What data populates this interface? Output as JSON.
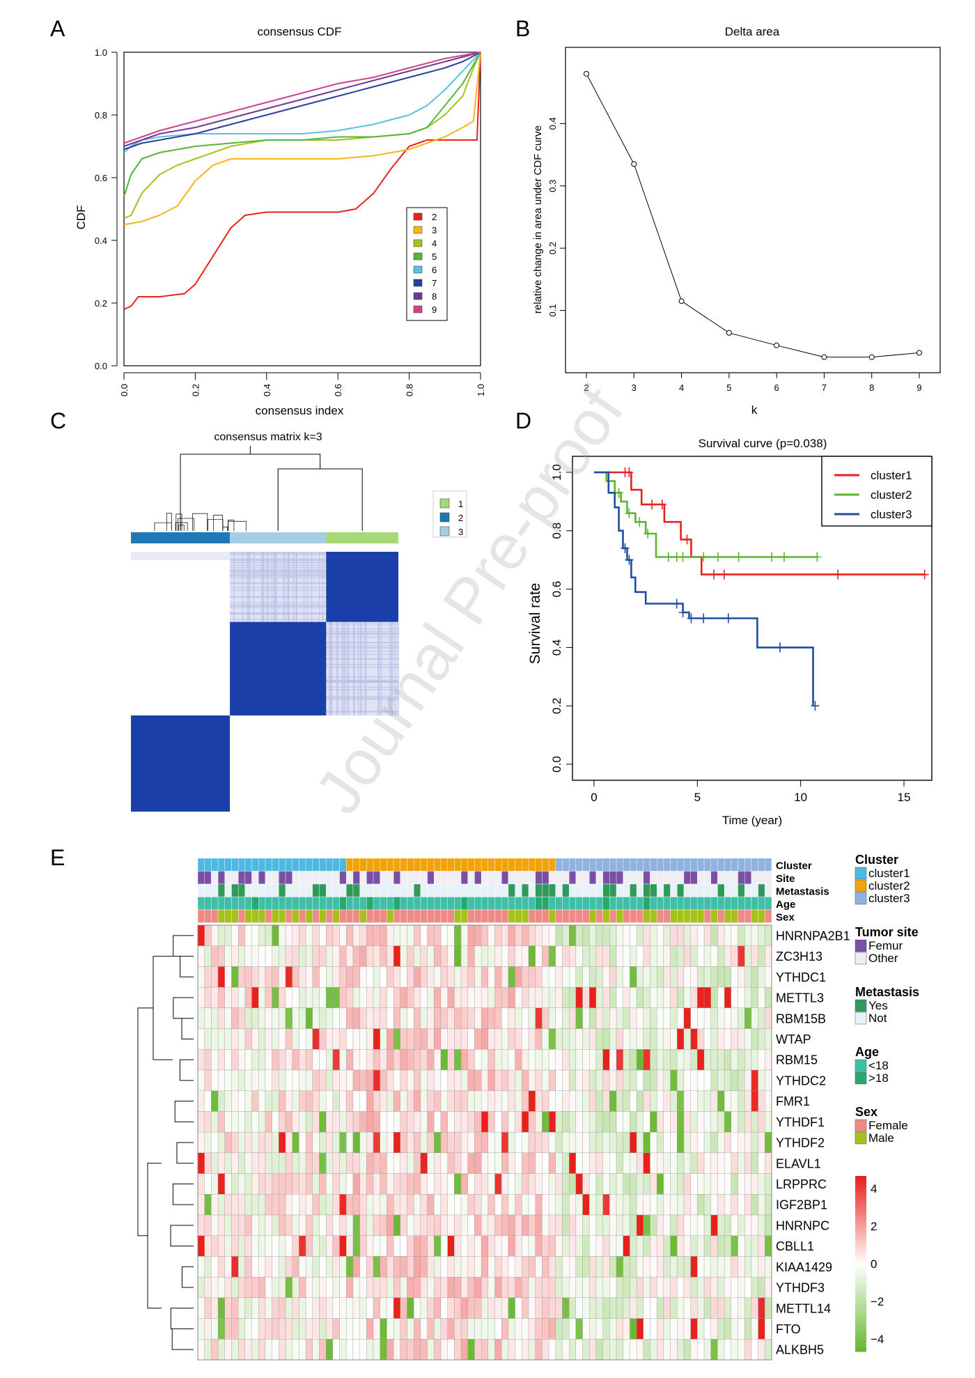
{
  "panel_labels": [
    "A",
    "B",
    "C",
    "D",
    "E"
  ],
  "watermark": "Journal Pre-proof",
  "chart_data": [
    {
      "panel": "A",
      "type": "line",
      "title": "consensus CDF",
      "xlabel": "consensus index",
      "ylabel": "CDF",
      "xlim": [
        0,
        1
      ],
      "ylim": [
        0,
        1
      ],
      "xticks": [
        "0.0",
        "0.2",
        "0.4",
        "0.6",
        "0.8",
        "1.0"
      ],
      "yticks": [
        "0.0",
        "0.2",
        "0.4",
        "0.6",
        "0.8",
        "1.0"
      ],
      "legend_position": "right",
      "series": [
        {
          "name": "2",
          "color": "#e8211d",
          "x": [
            0,
            0.02,
            0.04,
            0.1,
            0.17,
            0.2,
            0.25,
            0.3,
            0.34,
            0.4,
            0.5,
            0.6,
            0.65,
            0.7,
            0.75,
            0.8,
            0.85,
            0.9,
            0.95,
            0.98,
            0.99,
            1.0
          ],
          "y": [
            0.18,
            0.19,
            0.22,
            0.22,
            0.23,
            0.26,
            0.35,
            0.44,
            0.48,
            0.49,
            0.49,
            0.49,
            0.5,
            0.55,
            0.63,
            0.7,
            0.72,
            0.72,
            0.72,
            0.72,
            0.72,
            1.0
          ]
        },
        {
          "name": "3",
          "color": "#f4b618",
          "x": [
            0,
            0.05,
            0.1,
            0.15,
            0.2,
            0.25,
            0.3,
            0.35,
            0.4,
            0.5,
            0.6,
            0.7,
            0.8,
            0.9,
            0.95,
            0.98,
            1.0
          ],
          "y": [
            0.45,
            0.46,
            0.48,
            0.51,
            0.59,
            0.64,
            0.66,
            0.66,
            0.66,
            0.66,
            0.66,
            0.67,
            0.69,
            0.73,
            0.76,
            0.78,
            1.0
          ]
        },
        {
          "name": "4",
          "color": "#a6c11a",
          "x": [
            0,
            0.02,
            0.05,
            0.1,
            0.15,
            0.2,
            0.3,
            0.4,
            0.5,
            0.6,
            0.7,
            0.8,
            0.85,
            0.9,
            0.95,
            0.98,
            1.0
          ],
          "y": [
            0.47,
            0.48,
            0.55,
            0.61,
            0.64,
            0.66,
            0.7,
            0.72,
            0.72,
            0.72,
            0.73,
            0.74,
            0.76,
            0.8,
            0.86,
            0.95,
            1.0
          ]
        },
        {
          "name": "5",
          "color": "#57b43a",
          "x": [
            0,
            0.02,
            0.05,
            0.1,
            0.15,
            0.2,
            0.3,
            0.4,
            0.5,
            0.6,
            0.7,
            0.8,
            0.85,
            0.9,
            0.95,
            1.0
          ],
          "y": [
            0.54,
            0.61,
            0.66,
            0.68,
            0.69,
            0.7,
            0.71,
            0.72,
            0.72,
            0.73,
            0.73,
            0.74,
            0.76,
            0.83,
            0.9,
            1.0
          ]
        },
        {
          "name": "6",
          "color": "#59c3da",
          "x": [
            0,
            0.02,
            0.05,
            0.1,
            0.2,
            0.3,
            0.4,
            0.5,
            0.6,
            0.7,
            0.8,
            0.85,
            0.9,
            0.95,
            1.0
          ],
          "y": [
            0.68,
            0.7,
            0.72,
            0.73,
            0.74,
            0.74,
            0.74,
            0.74,
            0.75,
            0.77,
            0.8,
            0.83,
            0.88,
            0.94,
            1.0
          ]
        },
        {
          "name": "7",
          "color": "#2c3f98",
          "x": [
            0,
            0.05,
            0.1,
            0.2,
            0.3,
            0.4,
            0.5,
            0.6,
            0.7,
            0.8,
            0.9,
            0.95,
            1.0
          ],
          "y": [
            0.69,
            0.71,
            0.72,
            0.74,
            0.77,
            0.8,
            0.83,
            0.86,
            0.89,
            0.92,
            0.95,
            0.97,
            1.0
          ]
        },
        {
          "name": "8",
          "color": "#6b3a96",
          "x": [
            0,
            0.05,
            0.1,
            0.2,
            0.3,
            0.4,
            0.5,
            0.6,
            0.7,
            0.8,
            0.9,
            1.0
          ],
          "y": [
            0.7,
            0.72,
            0.74,
            0.76,
            0.79,
            0.82,
            0.85,
            0.88,
            0.91,
            0.94,
            0.97,
            1.0
          ]
        },
        {
          "name": "9",
          "color": "#d1418f",
          "x": [
            0,
            0.05,
            0.1,
            0.2,
            0.3,
            0.4,
            0.5,
            0.6,
            0.7,
            0.8,
            0.9,
            1.0
          ],
          "y": [
            0.71,
            0.73,
            0.75,
            0.78,
            0.81,
            0.84,
            0.87,
            0.9,
            0.92,
            0.95,
            0.98,
            1.0
          ]
        }
      ]
    },
    {
      "panel": "B",
      "type": "line",
      "title": "Delta area",
      "xlabel": "k",
      "ylabel": "relative change in area under CDF curve",
      "xlim": [
        2,
        9
      ],
      "ylim": [
        0,
        0.5
      ],
      "xticks": [
        "2",
        "3",
        "4",
        "5",
        "6",
        "7",
        "8",
        "9"
      ],
      "yticks": [
        "0.1",
        "0.2",
        "0.3",
        "0.4"
      ],
      "series": [
        {
          "name": "",
          "color": "#000000",
          "x": [
            2,
            3,
            4,
            5,
            6,
            7,
            8,
            9
          ],
          "y": [
            0.48,
            0.335,
            0.115,
            0.064,
            0.044,
            0.025,
            0.025,
            0.032
          ]
        }
      ]
    },
    {
      "panel": "C",
      "type": "heatmap",
      "title": "consensus matrix k=3",
      "legend_position": "right",
      "legend": [
        {
          "name": "1",
          "color": "#a6d878"
        },
        {
          "name": "2",
          "color": "#1f78b4"
        },
        {
          "name": "3",
          "color": "#a6cee3"
        }
      ],
      "cluster_bar": [
        {
          "cluster": "2",
          "fraction": 0.37
        },
        {
          "cluster": "3",
          "fraction": 0.36
        },
        {
          "cluster": "1",
          "fraction": 0.27
        }
      ],
      "matrix_color": "#1b3fa8"
    },
    {
      "panel": "D",
      "type": "line",
      "title": "Survival curve (p=0.038)",
      "xlabel": "Time (year)",
      "ylabel": "Survival rate",
      "xlim": [
        0,
        16
      ],
      "ylim": [
        0,
        1
      ],
      "xticks": [
        "0",
        "5",
        "10",
        "15"
      ],
      "yticks": [
        "0.0",
        "0.2",
        "0.4",
        "0.6",
        "0.8",
        "1.0"
      ],
      "legend_position": "top-right",
      "series": [
        {
          "name": "cluster1",
          "color": "#e8211d",
          "x": [
            0,
            1.8,
            2.3,
            3.4,
            4.2,
            4.7,
            5.2,
            16
          ],
          "y": [
            1.0,
            0.94,
            0.89,
            0.83,
            0.77,
            0.71,
            0.65,
            0.65
          ],
          "censored_x": [
            1.5,
            1.7,
            2.8,
            3.3,
            4.5,
            5.8,
            6.3,
            11.8,
            16
          ]
        },
        {
          "name": "cluster2",
          "color": "#5bb52f",
          "x": [
            0,
            0.6,
            1.0,
            1.3,
            1.6,
            2.0,
            2.5,
            3.0,
            10.8
          ],
          "y": [
            1.0,
            0.97,
            0.93,
            0.9,
            0.86,
            0.83,
            0.79,
            0.71,
            0.71
          ],
          "censored_x": [
            1.2,
            1.7,
            2.2,
            2.6,
            3.6,
            4.0,
            4.3,
            5.3,
            6.0,
            7.0,
            8.6,
            9.2,
            10.8
          ]
        },
        {
          "name": "cluster3",
          "color": "#1c4ea3",
          "x": [
            0,
            0.7,
            1.0,
            1.2,
            1.4,
            1.6,
            1.8,
            2.0,
            2.5,
            4.3,
            4.6,
            7.9,
            10.6
          ],
          "y": [
            1.0,
            0.93,
            0.88,
            0.8,
            0.74,
            0.7,
            0.64,
            0.59,
            0.55,
            0.52,
            0.5,
            0.4,
            0.2
          ],
          "censored_x": [
            1.5,
            1.7,
            4.0,
            4.3,
            4.7,
            5.3,
            6.5,
            9.0,
            10.7
          ]
        }
      ]
    },
    {
      "panel": "E",
      "type": "heatmap",
      "rows": [
        "HNRNPA2B1",
        "ZC3H13",
        "YTHDC1",
        "METTL3",
        "RBM15B",
        "WTAP",
        "RBM15",
        "YTHDC2",
        "FMR1",
        "YTHDF1",
        "YTHDF2",
        "ELAVL1",
        "LRPPRC",
        "IGF2BP1",
        "HNRNPC",
        "CBLL1",
        "KIAA1429",
        "YTHDF3",
        "METTL14",
        "FTO",
        "ALKBH5"
      ],
      "annotation_rows": [
        "Cluster",
        "Site",
        "Metastasis",
        "Age",
        "Sex"
      ],
      "color_scale": {
        "min": -4,
        "max": 4,
        "low": "#6ab832",
        "mid": "#ffffff",
        "high": "#e8211d",
        "ticks": [
          "4",
          "2",
          "0",
          "−2",
          "−4"
        ]
      },
      "legends": [
        {
          "title": "Cluster",
          "items": [
            {
              "label": "cluster1",
              "color": "#4fb8e0"
            },
            {
              "label": "cluster2",
              "color": "#f0a30a"
            },
            {
              "label": "cluster3",
              "color": "#8fb2e0"
            }
          ]
        },
        {
          "title": "Tumor site",
          "items": [
            {
              "label": "Femur",
              "color": "#7b4fa6"
            },
            {
              "label": "Other",
              "color": "#eeeef4"
            }
          ]
        },
        {
          "title": "Metastasis",
          "items": [
            {
              "label": "Yes",
              "color": "#2f9a5c"
            },
            {
              "label": "Not",
              "color": "#e6f2f6"
            }
          ]
        },
        {
          "title": "Age",
          "items": [
            {
              "label": "<18",
              "color": "#3fc0a6"
            },
            {
              "label": ">18",
              "color": "#26a870"
            }
          ]
        },
        {
          "title": "Sex",
          "items": [
            {
              "label": "Female",
              "color": "#f08a86"
            },
            {
              "label": "Male",
              "color": "#a6c11a"
            }
          ]
        }
      ],
      "n_samples": 85,
      "cluster_sizes": [
        22,
        31,
        32
      ]
    }
  ]
}
